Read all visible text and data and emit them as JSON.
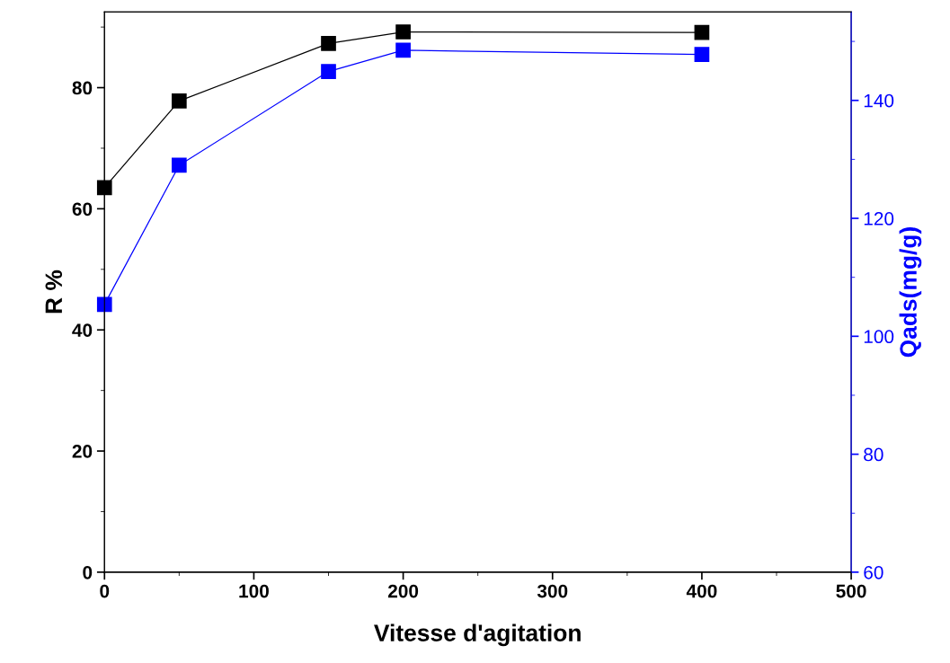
{
  "chart_data": {
    "type": "line",
    "xlabel": "Vitesse d'agitation",
    "ylabel": "R %",
    "y2label": "Qads(mg/g)",
    "x": [
      0,
      50,
      150,
      200,
      400
    ],
    "series": [
      {
        "color": "#000000",
        "values": [
          63.5,
          77.8,
          87.3,
          89.2,
          89.1
        ]
      },
      {
        "color": "#0000ff",
        "axis": "y2",
        "values": [
          105.4,
          129.0,
          144.9,
          148.5,
          147.8
        ]
      }
    ],
    "xlim": [
      0,
      500
    ],
    "xticks": [
      0,
      100,
      200,
      300,
      400,
      500
    ],
    "ylim": [
      0,
      92.5
    ],
    "yticks": [
      0,
      20,
      40,
      60,
      80
    ],
    "y2lim": [
      60,
      155
    ],
    "y2ticks": [
      60,
      80,
      100,
      120,
      140
    ],
    "marker": "square",
    "line_style": "solid",
    "grid": false,
    "legend": false
  }
}
